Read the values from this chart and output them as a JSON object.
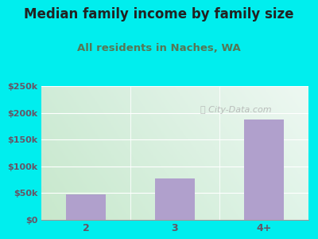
{
  "title": "Median family income by family size",
  "subtitle": "All residents in Naches, WA",
  "categories": [
    "2",
    "3",
    "4+"
  ],
  "values": [
    48000,
    78000,
    188000
  ],
  "bar_color": "#b0a0cc",
  "background_color": "#00eeee",
  "title_color": "#222222",
  "subtitle_color": "#557755",
  "tick_color": "#665566",
  "ylim": [
    0,
    250000
  ],
  "yticks": [
    0,
    50000,
    100000,
    150000,
    200000,
    250000
  ],
  "ytick_labels": [
    "$0",
    "$50k",
    "$100k",
    "$150k",
    "$200k",
    "$250k"
  ],
  "watermark": "ⓘ City-Data.com",
  "title_fontsize": 12,
  "subtitle_fontsize": 9.5,
  "plot_bg_topleft": "#d8eedd",
  "plot_bg_topright": "#eef8f5",
  "plot_bg_botleft": "#cce8cc",
  "plot_bg_botright": "#e8f8ee"
}
